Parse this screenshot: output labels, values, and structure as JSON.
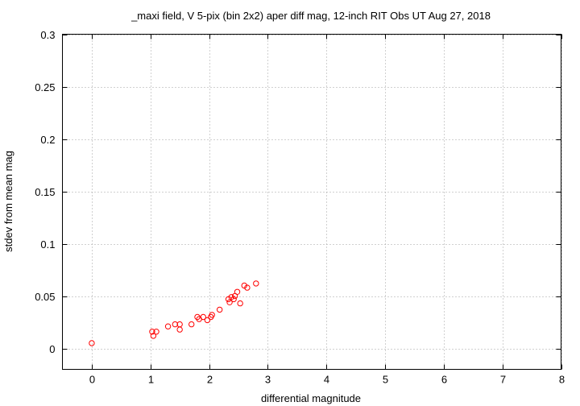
{
  "chart_data": {
    "type": "scatter",
    "title": "_maxi field, V 5-pix (bin 2x2) aper diff mag,  12-inch RIT Obs UT Aug 27, 2018",
    "xlabel": "differential magnitude",
    "ylabel": "stdev from mean mag",
    "xlim": [
      -0.5,
      8
    ],
    "ylim": [
      -0.02,
      0.3
    ],
    "xticks": [
      "0",
      "1",
      "2",
      "3",
      "4",
      "5",
      "6",
      "7",
      "8"
    ],
    "yticks": [
      "0",
      "0.05",
      "0.1",
      "0.15",
      "0.2",
      "0.25",
      "0.3"
    ],
    "grid": true,
    "marker_color": "#ff0000",
    "marker": "open circle",
    "series": [
      {
        "x": [
          0.0,
          1.03,
          1.05,
          1.1,
          1.3,
          1.42,
          1.5,
          1.5,
          1.7,
          1.8,
          1.83,
          1.9,
          1.97,
          2.03,
          2.05,
          2.18,
          2.33,
          2.35,
          2.38,
          2.42,
          2.44,
          2.48,
          2.53,
          2.6,
          2.65,
          2.8
        ],
        "y": [
          0.005,
          0.016,
          0.012,
          0.016,
          0.021,
          0.023,
          0.023,
          0.018,
          0.023,
          0.03,
          0.028,
          0.03,
          0.027,
          0.03,
          0.032,
          0.037,
          0.047,
          0.044,
          0.049,
          0.047,
          0.05,
          0.054,
          0.043,
          0.06,
          0.058,
          0.062
        ]
      }
    ]
  }
}
